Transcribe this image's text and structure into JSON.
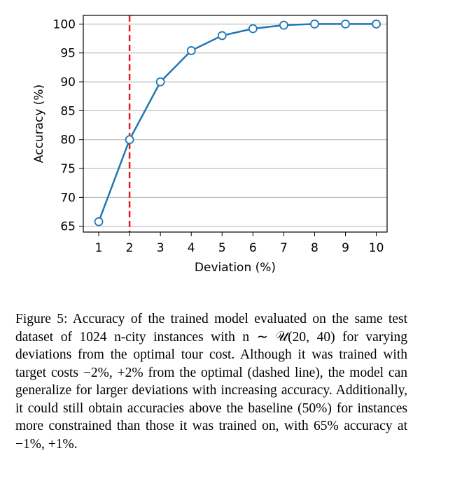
{
  "chart_data": {
    "type": "line",
    "xlabel": "Deviation (%)",
    "ylabel": "Accuracy (%)",
    "x": [
      1,
      2,
      3,
      4,
      5,
      6,
      7,
      8,
      9,
      10
    ],
    "series": [
      {
        "values": [
          65.8,
          80,
          90,
          95.4,
          98,
          99.2,
          99.8,
          100,
          100,
          100
        ]
      }
    ],
    "xlim": [
      0.5,
      10.35
    ],
    "ylim": [
      64,
      101.5
    ],
    "xticks": [
      1,
      2,
      3,
      4,
      5,
      6,
      7,
      8,
      9,
      10
    ],
    "yticks": [
      65,
      70,
      75,
      80,
      85,
      90,
      95,
      100
    ],
    "grid": "y",
    "reference_vline": {
      "x": 2,
      "style": "dashed"
    },
    "colors": {
      "line": "#1f77b4",
      "marker_face": "#ffffff",
      "vline": "#e31a1c",
      "grid": "#b0b0b0"
    }
  },
  "caption": "Figure 5: Accuracy of the trained model evaluated on the same test dataset of 1024 n-city instances with n ∼ 𝒰(20, 40) for varying deviations from the optimal tour cost. Although it was trained with target costs −2%, +2% from the optimal (dashed line), the model can generalize for larger deviations with increasing accuracy. Additionally, it could still obtain accuracies above the baseline (50%) for instances more constrained than those it was trained on, with 65% accuracy at −1%, +1%."
}
